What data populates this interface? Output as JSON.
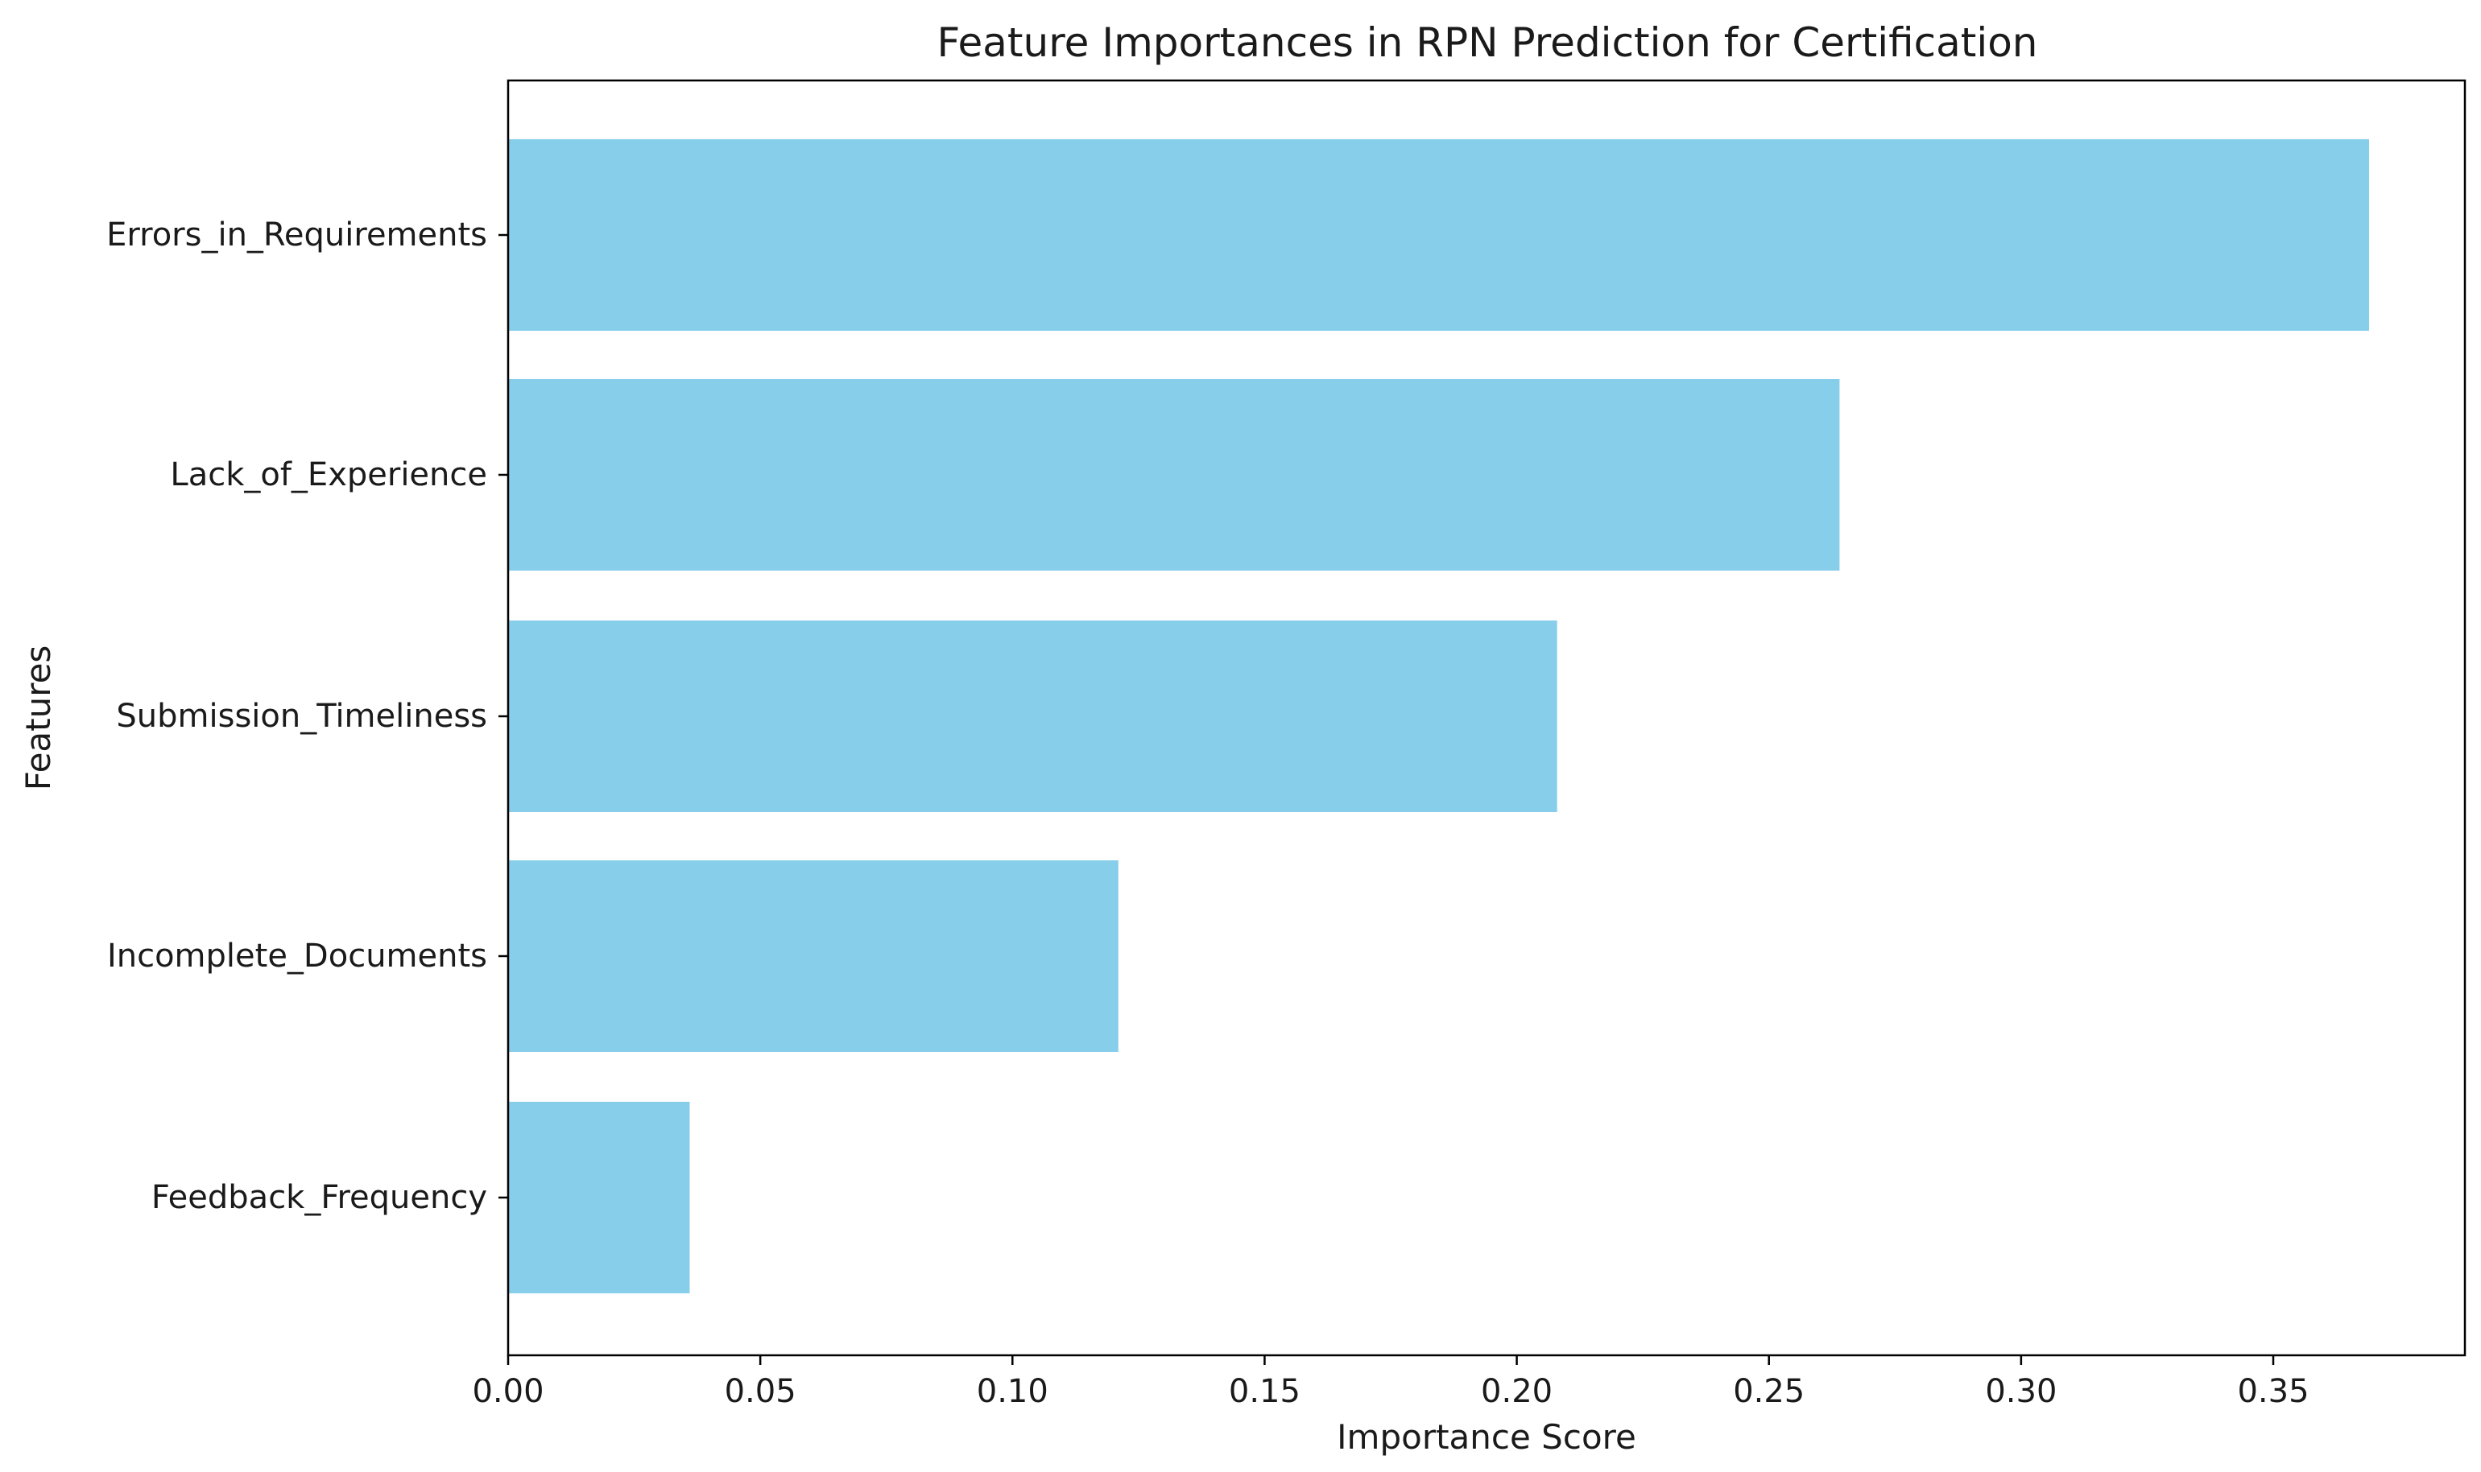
{
  "chart_data": {
    "type": "bar",
    "orientation": "horizontal",
    "title": "Feature Importances in RPN Prediction for Certification",
    "xlabel": "Importance Score",
    "ylabel": "Features",
    "categories": [
      "Errors_in_Requirements",
      "Lack_of_Experience",
      "Submission_Timeliness",
      "Incomplete_Documents",
      "Feedback_Frequency"
    ],
    "values": [
      0.369,
      0.264,
      0.208,
      0.121,
      0.036
    ],
    "xlim": [
      0,
      0.388
    ],
    "xticks": [
      "0.00",
      "0.05",
      "0.10",
      "0.15",
      "0.20",
      "0.25",
      "0.30",
      "0.35"
    ],
    "bar_color": "#87CEEB",
    "grid": false,
    "legend": "none"
  }
}
